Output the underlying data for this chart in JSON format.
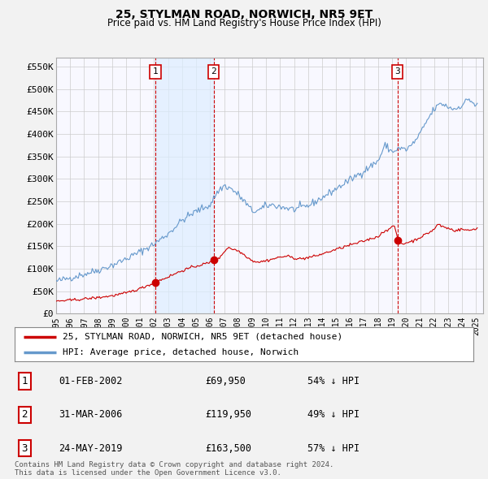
{
  "title": "25, STYLMAN ROAD, NORWICH, NR5 9ET",
  "subtitle": "Price paid vs. HM Land Registry's House Price Index (HPI)",
  "ylabel_ticks": [
    "£0",
    "£50K",
    "£100K",
    "£150K",
    "£200K",
    "£250K",
    "£300K",
    "£350K",
    "£400K",
    "£450K",
    "£500K",
    "£550K"
  ],
  "ytick_values": [
    0,
    50000,
    100000,
    150000,
    200000,
    250000,
    300000,
    350000,
    400000,
    450000,
    500000,
    550000
  ],
  "ylim": [
    0,
    570000
  ],
  "xlim_start": 1995.0,
  "xlim_end": 2025.5,
  "background_color": "#f2f2f2",
  "plot_background": "#f8f8ff",
  "grid_color": "#cccccc",
  "sale_line_color": "#cc0000",
  "hpi_line_color": "#6699cc",
  "sale_marker_color": "#cc0000",
  "vline_color": "#cc0000",
  "marker_box_color": "#cc0000",
  "shade_color": "#ddeeff",
  "transactions": [
    {
      "id": 1,
      "date_x": 2002.08,
      "price": 69950,
      "label": "01-FEB-2002",
      "price_str": "£69,950",
      "hpi_str": "54% ↓ HPI"
    },
    {
      "id": 2,
      "date_x": 2006.25,
      "price": 119950,
      "label": "31-MAR-2006",
      "price_str": "£119,950",
      "hpi_str": "49% ↓ HPI"
    },
    {
      "id": 3,
      "date_x": 2019.38,
      "price": 163500,
      "label": "24-MAY-2019",
      "price_str": "£163,500",
      "hpi_str": "57% ↓ HPI"
    }
  ],
  "legend_label_sale": "25, STYLMAN ROAD, NORWICH, NR5 9ET (detached house)",
  "legend_label_hpi": "HPI: Average price, detached house, Norwich",
  "footer_text": "Contains HM Land Registry data © Crown copyright and database right 2024.\nThis data is licensed under the Open Government Licence v3.0.",
  "xtick_years": [
    1995,
    1996,
    1997,
    1998,
    1999,
    2000,
    2001,
    2002,
    2003,
    2004,
    2005,
    2006,
    2007,
    2008,
    2009,
    2010,
    2011,
    2012,
    2013,
    2014,
    2015,
    2016,
    2017,
    2018,
    2019,
    2020,
    2021,
    2022,
    2023,
    2024,
    2025
  ]
}
